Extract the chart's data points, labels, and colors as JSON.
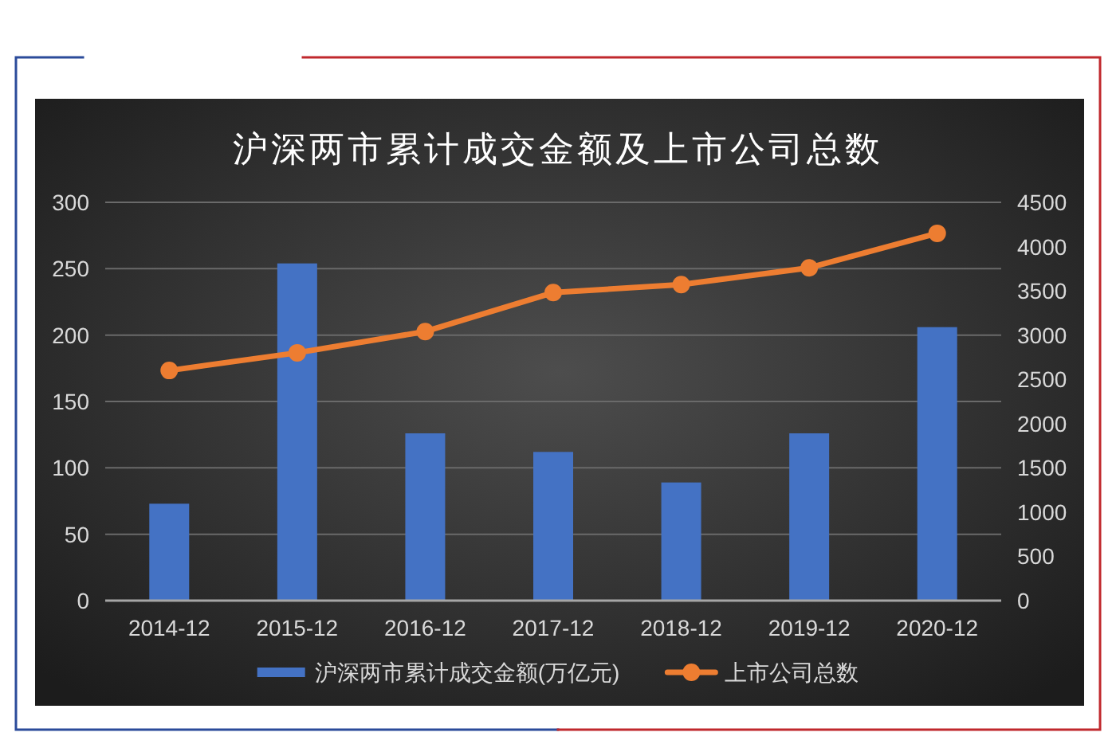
{
  "chart_data": {
    "type": "bar",
    "title": "沪深两市累计成交金额及上市公司总数",
    "categories": [
      "2014-12",
      "2015-12",
      "2016-12",
      "2017-12",
      "2018-12",
      "2019-12",
      "2020-12"
    ],
    "series": [
      {
        "name": "沪深两市累计成交金额(万亿元)",
        "color": "#4472c4",
        "values": [
          73,
          254,
          126,
          112,
          89,
          126,
          206
        ]
      },
      {
        "name": "上市公司总数",
        "type": "line",
        "axis": "y2",
        "color": "#ed7d31",
        "values": [
          2600,
          2800,
          3040,
          3480,
          3570,
          3760,
          4150
        ]
      }
    ],
    "ylim": [
      0,
      300
    ],
    "yticks": [
      0,
      50,
      100,
      150,
      200,
      250,
      300
    ],
    "y2lim": [
      0,
      4500
    ],
    "y2ticks": [
      0,
      500,
      1000,
      1500,
      2000,
      2500,
      3000,
      3500,
      4000,
      4500
    ],
    "grid": "y",
    "legend": "bottom",
    "marker": "circle",
    "line_style": "solid"
  }
}
